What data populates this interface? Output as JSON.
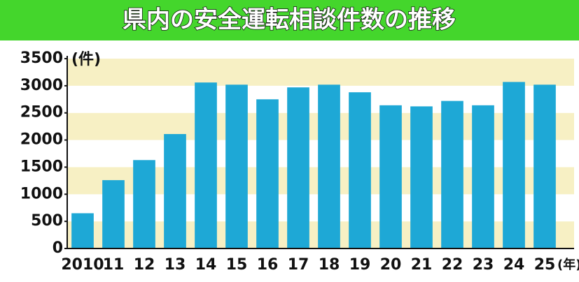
{
  "chart_data": {
    "type": "bar",
    "title": "県内の安全運転相談件数の推移",
    "y_unit": "(件)",
    "x_unit": "(年)",
    "categories": [
      "2010",
      "11",
      "12",
      "13",
      "14",
      "15",
      "16",
      "17",
      "18",
      "19",
      "20",
      "21",
      "22",
      "23",
      "24",
      "25"
    ],
    "values": [
      650,
      1260,
      1630,
      2110,
      3060,
      3020,
      2750,
      2970,
      3020,
      2880,
      2640,
      2620,
      2720,
      2640,
      3070,
      3020
    ],
    "color": "#1ea8d6",
    "ylim": [
      0,
      3500
    ],
    "yticks": [
      0,
      500,
      1000,
      1500,
      2000,
      2500,
      3000,
      3500
    ],
    "grid": true
  }
}
